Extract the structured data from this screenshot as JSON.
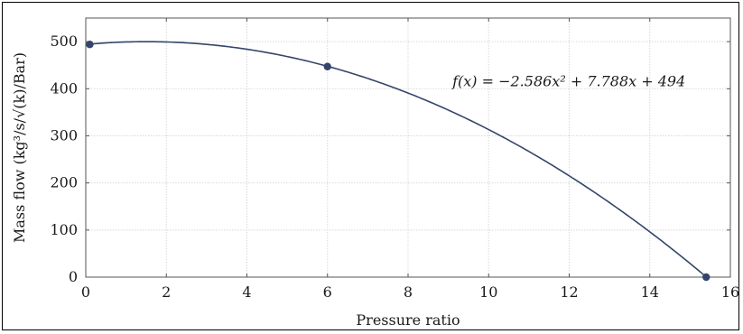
{
  "chart_data": {
    "type": "line",
    "title": "",
    "xlabel": "Pressure ratio",
    "ylabel": "Mass flow (kg³/s/√(k)/Bar)",
    "xlim": [
      0,
      16
    ],
    "ylim": [
      0,
      550
    ],
    "x_ticks": [
      0,
      2,
      4,
      6,
      8,
      10,
      12,
      14,
      16
    ],
    "y_ticks": [
      0,
      100,
      200,
      300,
      400,
      500
    ],
    "grid": true,
    "line_color": "#34456b",
    "series": [
      {
        "kind": "fit",
        "coefficients": {
          "a": -2.586,
          "b": 7.788,
          "c": 494
        },
        "x": [
          0.1,
          1,
          2,
          3,
          4,
          5,
          6,
          7,
          8,
          9,
          10,
          11,
          12,
          13,
          14,
          15,
          15.4
        ],
        "values": [
          494.8,
          499.2,
          499.2,
          494.1,
          483.8,
          468.3,
          447.7,
          421.8,
          390.8,
          354.6,
          313.3,
          266.7,
          215.0,
          158.0,
          96.0,
          28.6,
          0.5
        ]
      },
      {
        "kind": "points",
        "x": [
          0.1,
          6,
          15.4
        ],
        "values": [
          494,
          447,
          0
        ]
      }
    ],
    "annotations": [
      {
        "text": "f(x) = −2.586x² + 7.788x + 494",
        "x": 9.1,
        "y": 415
      }
    ]
  }
}
